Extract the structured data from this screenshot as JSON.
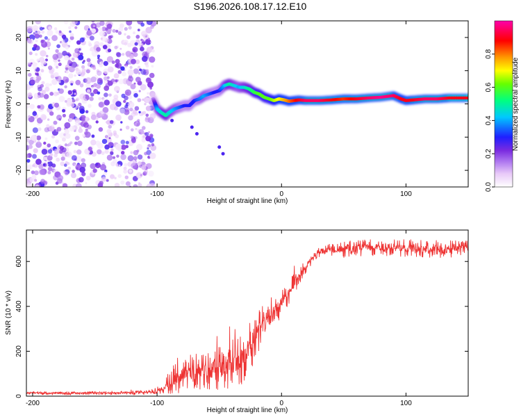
{
  "title": "S196.2026.108.17.12.E10",
  "chart_data": [
    {
      "type": "heatmap",
      "name": "spectrogram",
      "xlabel": "Height of straight line (km)",
      "ylabel": "Frequency (Hz)",
      "xlim": [
        -205,
        150
      ],
      "ylim": [
        -25,
        25
      ],
      "xticks": [
        -200,
        -100,
        0,
        100
      ],
      "yticks": [
        -20,
        -10,
        0,
        10,
        20
      ],
      "noise_region": {
        "x": [
          -205,
          -103
        ],
        "y": [
          -25,
          25
        ]
      },
      "ridge": {
        "x": [
          -103,
          -100,
          -97,
          -93,
          -90,
          -86,
          -82,
          -78,
          -74,
          -70,
          -66,
          -62,
          -58,
          -54,
          -50,
          -46,
          -42,
          -38,
          -34,
          -30,
          -26,
          -22,
          -18,
          -14,
          -10,
          -6,
          -2,
          2,
          6,
          10,
          14,
          20,
          30,
          40,
          50,
          60,
          70,
          80,
          90,
          96,
          100,
          106,
          115,
          125,
          135,
          150
        ],
        "y": [
          1.5,
          -1.5,
          -2.5,
          -3.5,
          -2.5,
          -1.5,
          -1.0,
          -0.5,
          -0.5,
          1.0,
          1.5,
          2.5,
          3.0,
          3.5,
          4.0,
          5.5,
          6.0,
          5.5,
          5.0,
          5.0,
          4.5,
          3.5,
          3.0,
          2.0,
          1.5,
          1.0,
          1.5,
          1.2,
          0.8,
          1.0,
          1.2,
          1.0,
          1.0,
          1.2,
          1.5,
          1.5,
          1.8,
          2.0,
          2.5,
          1.5,
          1.0,
          1.2,
          1.5,
          1.5,
          1.8,
          1.8
        ],
        "amplitude": [
          0.15,
          0.4,
          0.45,
          0.5,
          0.45,
          0.4,
          0.35,
          0.3,
          0.3,
          0.3,
          0.35,
          0.4,
          0.35,
          0.3,
          0.3,
          0.4,
          0.5,
          0.45,
          0.4,
          0.45,
          0.5,
          0.55,
          0.6,
          0.6,
          0.6,
          0.65,
          0.7,
          0.75,
          0.8,
          0.85,
          0.9,
          0.95,
          0.95,
          0.9,
          0.85,
          0.9,
          0.95,
          0.98,
          0.95,
          0.9,
          0.9,
          0.9,
          0.95,
          0.95,
          0.9,
          0.9
        ]
      },
      "colorbar": {
        "label": "Normalized spectral amplitude",
        "range": [
          0.0,
          1.0
        ],
        "ticks": [
          "0.0",
          "0.2",
          "0.4",
          "0.6",
          "0.8"
        ],
        "colors": [
          "#ffffff",
          "#e8c9f8",
          "#b07af0",
          "#7a2be0",
          "#1f1fff",
          "#00c8ff",
          "#00ff80",
          "#66ff00",
          "#ffff00",
          "#ff9900",
          "#ff0000",
          "#ff00aa"
        ]
      }
    },
    {
      "type": "line",
      "name": "snr",
      "xlabel": "Height of straight line (km)",
      "ylabel": "SNR (10 * v/v)",
      "xlim": [
        -205,
        150
      ],
      "ylim": [
        0,
        740
      ],
      "xticks": [
        -200,
        -100,
        0,
        100
      ],
      "yticks": [
        0,
        200,
        400,
        600
      ],
      "color": "#ee3333",
      "series": [
        {
          "name": "SNR",
          "x": [
            -205,
            -180,
            -150,
            -120,
            -105,
            -95,
            -90,
            -85,
            -80,
            -75,
            -70,
            -65,
            -60,
            -55,
            -50,
            -45,
            -40,
            -35,
            -30,
            -25,
            -20,
            -15,
            -10,
            -5,
            0,
            5,
            10,
            15,
            20,
            25,
            30,
            40,
            50,
            60,
            80,
            100,
            120,
            150
          ],
          "y": [
            15,
            12,
            14,
            15,
            18,
            30,
            60,
            80,
            95,
            100,
            105,
            110,
            115,
            120,
            125,
            130,
            140,
            150,
            180,
            230,
            270,
            320,
            350,
            380,
            420,
            450,
            500,
            540,
            580,
            610,
            640,
            650,
            655,
            660,
            665,
            660,
            655,
            655
          ],
          "spread": [
            10,
            10,
            10,
            10,
            15,
            30,
            70,
            90,
            100,
            100,
            110,
            110,
            120,
            120,
            130,
            130,
            140,
            140,
            150,
            140,
            130,
            120,
            110,
            90,
            80,
            70,
            70,
            50,
            40,
            30,
            30,
            40,
            50,
            50,
            50,
            50,
            50,
            50
          ]
        }
      ]
    }
  ]
}
